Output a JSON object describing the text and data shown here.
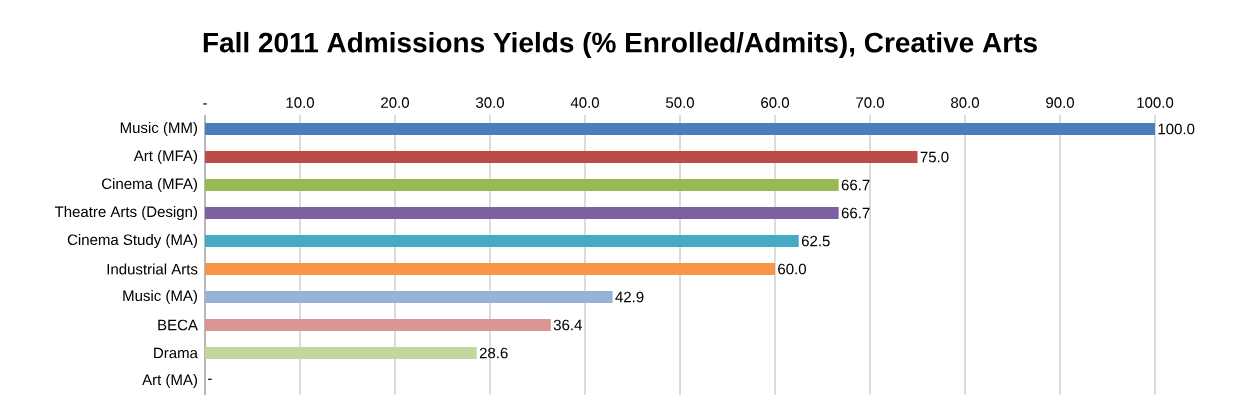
{
  "chart_data": {
    "type": "bar",
    "orientation": "horizontal",
    "title": "Fall 2011 Admissions Yields (% Enrolled/Admits), Creative Arts",
    "categories": [
      "Music (MM)",
      "Art (MFA)",
      "Cinema (MFA)",
      "Theatre Arts (Design)",
      "Cinema Study (MA)",
      "Industrial Arts",
      "Music (MA)",
      "BECA",
      "Drama",
      "Art (MA)"
    ],
    "values": [
      100,
      75,
      66.7,
      66.7,
      62.5,
      60,
      42.9,
      36.4,
      28.6,
      0
    ],
    "value_labels": [
      "100.0",
      "75.0",
      "66.7",
      "66.7",
      "62.5",
      "60.0",
      "42.9",
      "36.4",
      "28.6",
      "-"
    ],
    "colors": [
      "#4a7ebb",
      "#be4b48",
      "#98b954",
      "#7d60a0",
      "#46aac5",
      "#f79646",
      "#95b3d7",
      "#d99694",
      "#c3d69b",
      "#4a7ebb"
    ],
    "xlim": [
      0,
      100
    ],
    "xticks": [
      {
        "value": 0,
        "label": "-"
      },
      {
        "value": 10,
        "label": "10.0"
      },
      {
        "value": 20,
        "label": "20.0"
      },
      {
        "value": 30,
        "label": "30.0"
      },
      {
        "value": 40,
        "label": "40.0"
      },
      {
        "value": 50,
        "label": "50.0"
      },
      {
        "value": 60,
        "label": "60.0"
      },
      {
        "value": 70,
        "label": "70.0"
      },
      {
        "value": 80,
        "label": "80.0"
      },
      {
        "value": 90,
        "label": "90.0"
      },
      {
        "value": 100,
        "label": "100.0"
      }
    ],
    "grid": "x"
  }
}
